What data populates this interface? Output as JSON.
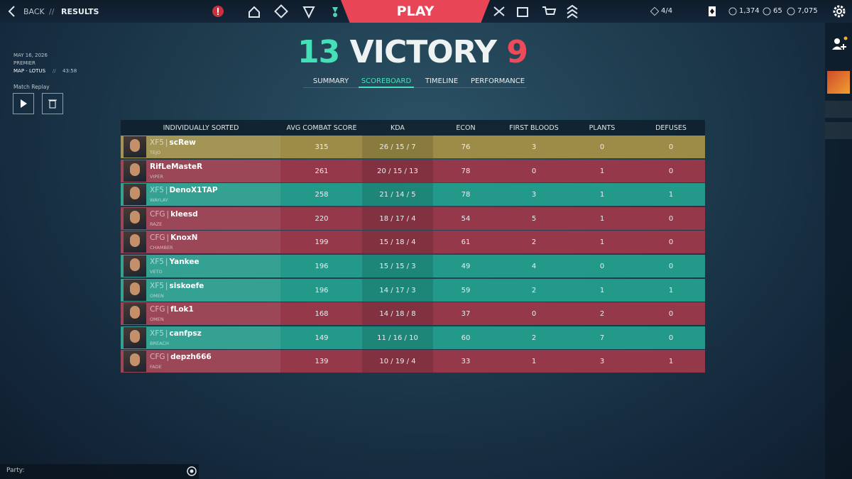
{
  "nav": {
    "back": "BACK",
    "separator": "//",
    "page": "RESULTS",
    "play": "PLAY",
    "party_size": "4/4",
    "vp": "1,374",
    "radianite": "65",
    "kingdom_credits": "7,075"
  },
  "match": {
    "date": "MAY 16, 2026",
    "mode": "PREMIER",
    "map": "MAP - LOTUS",
    "separator": "//",
    "duration": "43:58",
    "replay_label": "Match Replay"
  },
  "result": {
    "team_score": "13",
    "outcome": "VICTORY",
    "enemy_score": "9"
  },
  "tabs": [
    "SUMMARY",
    "SCOREBOARD",
    "TIMELINE",
    "PERFORMANCE"
  ],
  "scoreboard": {
    "columns": [
      "INDIVIDUALLY SORTED",
      "AVG COMBAT SCORE",
      "KDA",
      "ECON",
      "FIRST BLOODS",
      "PLANTS",
      "DEFUSES"
    ],
    "tag_separator": "|",
    "rows": [
      {
        "team": "XF5",
        "name": "scRew",
        "agent": "TEJO",
        "acs": 315,
        "kda": "26 / 15 / 7",
        "econ": 76,
        "first_bloods": 3,
        "plants": 0,
        "defuses": 0,
        "color": "#9c8c47"
      },
      {
        "name": "RifLeMasteR",
        "agent": "VIPER",
        "acs": 261,
        "kda": "20 / 15 / 13",
        "econ": 78,
        "first_bloods": 0,
        "plants": 1,
        "defuses": 0,
        "color": "#94384a"
      },
      {
        "team": "XF5",
        "name": "DenoX1TAP",
        "agent": "WAYLAY",
        "acs": 258,
        "kda": "21 / 14 / 5",
        "econ": 78,
        "first_bloods": 3,
        "plants": 1,
        "defuses": 1,
        "color": "#23998a"
      },
      {
        "team": "CFG",
        "name": "kleesd",
        "agent": "RAZE",
        "acs": 220,
        "kda": "18 / 17 / 4",
        "econ": 54,
        "first_bloods": 5,
        "plants": 1,
        "defuses": 0,
        "color": "#94384a"
      },
      {
        "team": "CFG",
        "name": "KnoxN",
        "agent": "CHAMBER",
        "acs": 199,
        "kda": "15 / 18 / 4",
        "econ": 61,
        "first_bloods": 2,
        "plants": 1,
        "defuses": 0,
        "color": "#94384a"
      },
      {
        "team": "XF5",
        "name": "Yankee",
        "agent": "VETO",
        "acs": 196,
        "kda": "15 / 15 / 3",
        "econ": 49,
        "first_bloods": 4,
        "plants": 0,
        "defuses": 0,
        "color": "#23998a"
      },
      {
        "team": "XF5",
        "name": "siskoefe",
        "agent": "OMEN",
        "acs": 196,
        "kda": "14 / 17 / 3",
        "econ": 59,
        "first_bloods": 2,
        "plants": 1,
        "defuses": 1,
        "color": "#23998a"
      },
      {
        "team": "CFG",
        "name": "fLok1",
        "agent": "OMEN",
        "acs": 168,
        "kda": "14 / 18 / 8",
        "econ": 37,
        "first_bloods": 0,
        "plants": 2,
        "defuses": 0,
        "color": "#94384a"
      },
      {
        "team": "XF5",
        "name": "canfpsz",
        "agent": "BREACH",
        "acs": 149,
        "kda": "11 / 16 / 10",
        "econ": 60,
        "first_bloods": 2,
        "plants": 7,
        "defuses": 0,
        "color": "#23998a"
      },
      {
        "team": "CFG",
        "name": "depzh666",
        "agent": "FADE",
        "acs": 139,
        "kda": "10 / 19 / 4",
        "econ": 33,
        "first_bloods": 1,
        "plants": 3,
        "defuses": 1,
        "color": "#94384a"
      }
    ]
  },
  "party": {
    "label": "Party:"
  }
}
